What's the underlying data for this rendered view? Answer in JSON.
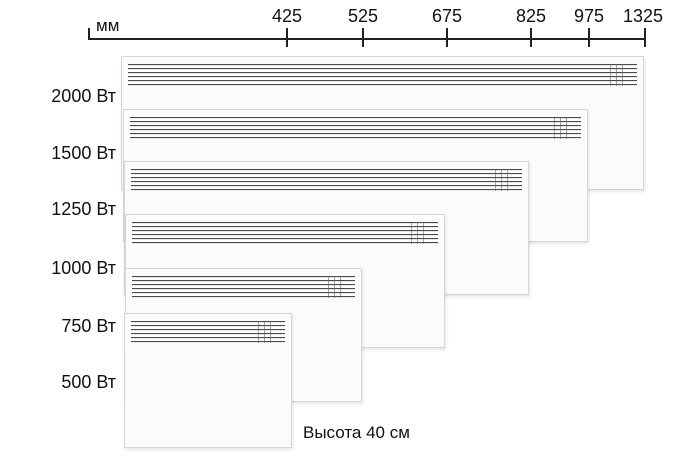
{
  "ruler": {
    "unit": "мм",
    "ticks": [
      "425",
      "525",
      "675",
      "825",
      "975",
      "1325"
    ]
  },
  "models": [
    {
      "power": "2000 Вт",
      "width_mm": 1325
    },
    {
      "power": "1500 Вт",
      "width_mm": 975
    },
    {
      "power": "1250 Вт",
      "width_mm": 825
    },
    {
      "power": "1000 Вт",
      "width_mm": 675
    },
    {
      "power": "750 Вт",
      "width_mm": 525
    },
    {
      "power": "500 Вт",
      "width_mm": 425
    }
  ],
  "height_note": "Высота 40 см"
}
